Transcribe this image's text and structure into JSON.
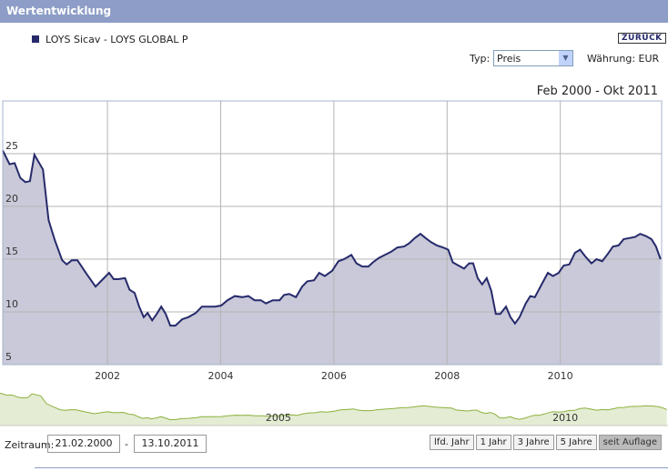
{
  "ui": {
    "header": "Wertentwicklung",
    "back_button": "ZURÜCK",
    "type_label": "Typ:",
    "type_value": "Preis",
    "currency": "Währung: EUR",
    "period_label": "Zeitraum:",
    "date_from": "21.02.2000",
    "date_sep": "-",
    "date_to": "13.10.2011",
    "range_buttons": [
      "lfd. Jahr",
      "1 Jahr",
      "3 Jahre",
      "5 Jahre",
      "seit Auflage"
    ]
  },
  "chart_data": {
    "type": "area",
    "subtitle": "Feb 2000 - Okt 2011",
    "x": [
      2000.15,
      2000.27,
      2000.36,
      2000.46,
      2000.55,
      2000.63,
      2000.71,
      2000.86,
      2000.96,
      2001.07,
      2001.2,
      2001.28,
      2001.37,
      2001.47,
      2001.63,
      2001.79,
      2001.92,
      2002.03,
      2002.11,
      2002.19,
      2002.31,
      2002.39,
      2002.48,
      2002.56,
      2002.64,
      2002.71,
      2002.79,
      2002.87,
      2002.95,
      2003.03,
      2003.11,
      2003.2,
      2003.32,
      2003.43,
      2003.56,
      2003.67,
      2003.8,
      2003.9,
      2004.01,
      2004.12,
      2004.25,
      2004.38,
      2004.49,
      2004.6,
      2004.71,
      2004.8,
      2004.92,
      2005.04,
      2005.12,
      2005.21,
      2005.33,
      2005.44,
      2005.53,
      2005.65,
      2005.74,
      2005.84,
      2005.97,
      2006.08,
      2006.18,
      2006.31,
      2006.4,
      2006.5,
      2006.61,
      2006.69,
      2006.79,
      2006.9,
      2007.01,
      2007.12,
      2007.24,
      2007.33,
      2007.43,
      2007.53,
      2007.62,
      2007.72,
      2007.82,
      2007.93,
      2008.02,
      2008.1,
      2008.2,
      2008.3,
      2008.39,
      2008.46,
      2008.54,
      2008.62,
      2008.7,
      2008.78,
      2008.86,
      2008.94,
      2009.04,
      2009.12,
      2009.2,
      2009.28,
      2009.39,
      2009.47,
      2009.55,
      2009.66,
      2009.78,
      2009.87,
      2009.97,
      2010.06,
      2010.16,
      2010.26,
      2010.35,
      2010.45,
      2010.55,
      2010.64,
      2010.74,
      2010.84,
      2010.93,
      2011.03,
      2011.12,
      2011.22,
      2011.32,
      2011.41,
      2011.51,
      2011.61,
      2011.69,
      2011.77
    ],
    "series": [
      {
        "name": "LOYS Sicav - LOYS GLOBAL P",
        "color": "#262a6b",
        "fill": "#c9c9d9",
        "values": [
          25.3,
          24.0,
          24.1,
          22.7,
          22.3,
          22.4,
          24.9,
          23.5,
          18.7,
          16.8,
          14.9,
          14.5,
          14.9,
          14.9,
          13.6,
          12.4,
          13.1,
          13.7,
          13.1,
          13.1,
          13.2,
          12.1,
          11.8,
          10.5,
          9.5,
          9.9,
          9.2,
          9.8,
          10.5,
          9.8,
          8.7,
          8.7,
          9.3,
          9.5,
          9.9,
          10.5,
          10.5,
          10.5,
          10.6,
          11.1,
          11.5,
          11.4,
          11.5,
          11.1,
          11.1,
          10.8,
          11.1,
          11.1,
          11.6,
          11.7,
          11.4,
          12.4,
          12.9,
          13.0,
          13.7,
          13.4,
          13.9,
          14.8,
          15.0,
          15.4,
          14.6,
          14.3,
          14.3,
          14.7,
          15.1,
          15.4,
          15.7,
          16.1,
          16.2,
          16.5,
          17.0,
          17.4,
          17.0,
          16.6,
          16.3,
          16.1,
          15.9,
          14.7,
          14.4,
          14.1,
          14.6,
          14.6,
          13.2,
          12.6,
          13.2,
          12.0,
          9.8,
          9.8,
          10.5,
          9.5,
          8.9,
          9.5,
          10.8,
          11.5,
          11.4,
          12.5,
          13.7,
          13.4,
          13.7,
          14.4,
          14.5,
          15.6,
          15.9,
          15.2,
          14.6,
          15.0,
          14.8,
          15.5,
          16.2,
          16.3,
          16.9,
          17.0,
          17.1,
          17.4,
          17.2,
          16.9,
          16.2,
          15.0
        ]
      }
    ],
    "xlim": [
      2000.15,
      2011.79
    ],
    "xticks": [
      2002,
      2004,
      2006,
      2008,
      2010
    ],
    "ylim": [
      5,
      30
    ],
    "yticks": [
      5,
      10,
      15,
      20,
      25
    ],
    "grid": true,
    "navigator_xticks": [
      2005,
      2010
    ],
    "navigator_color": "#8cb13e",
    "navigator_fill": "#e4ecd3"
  }
}
